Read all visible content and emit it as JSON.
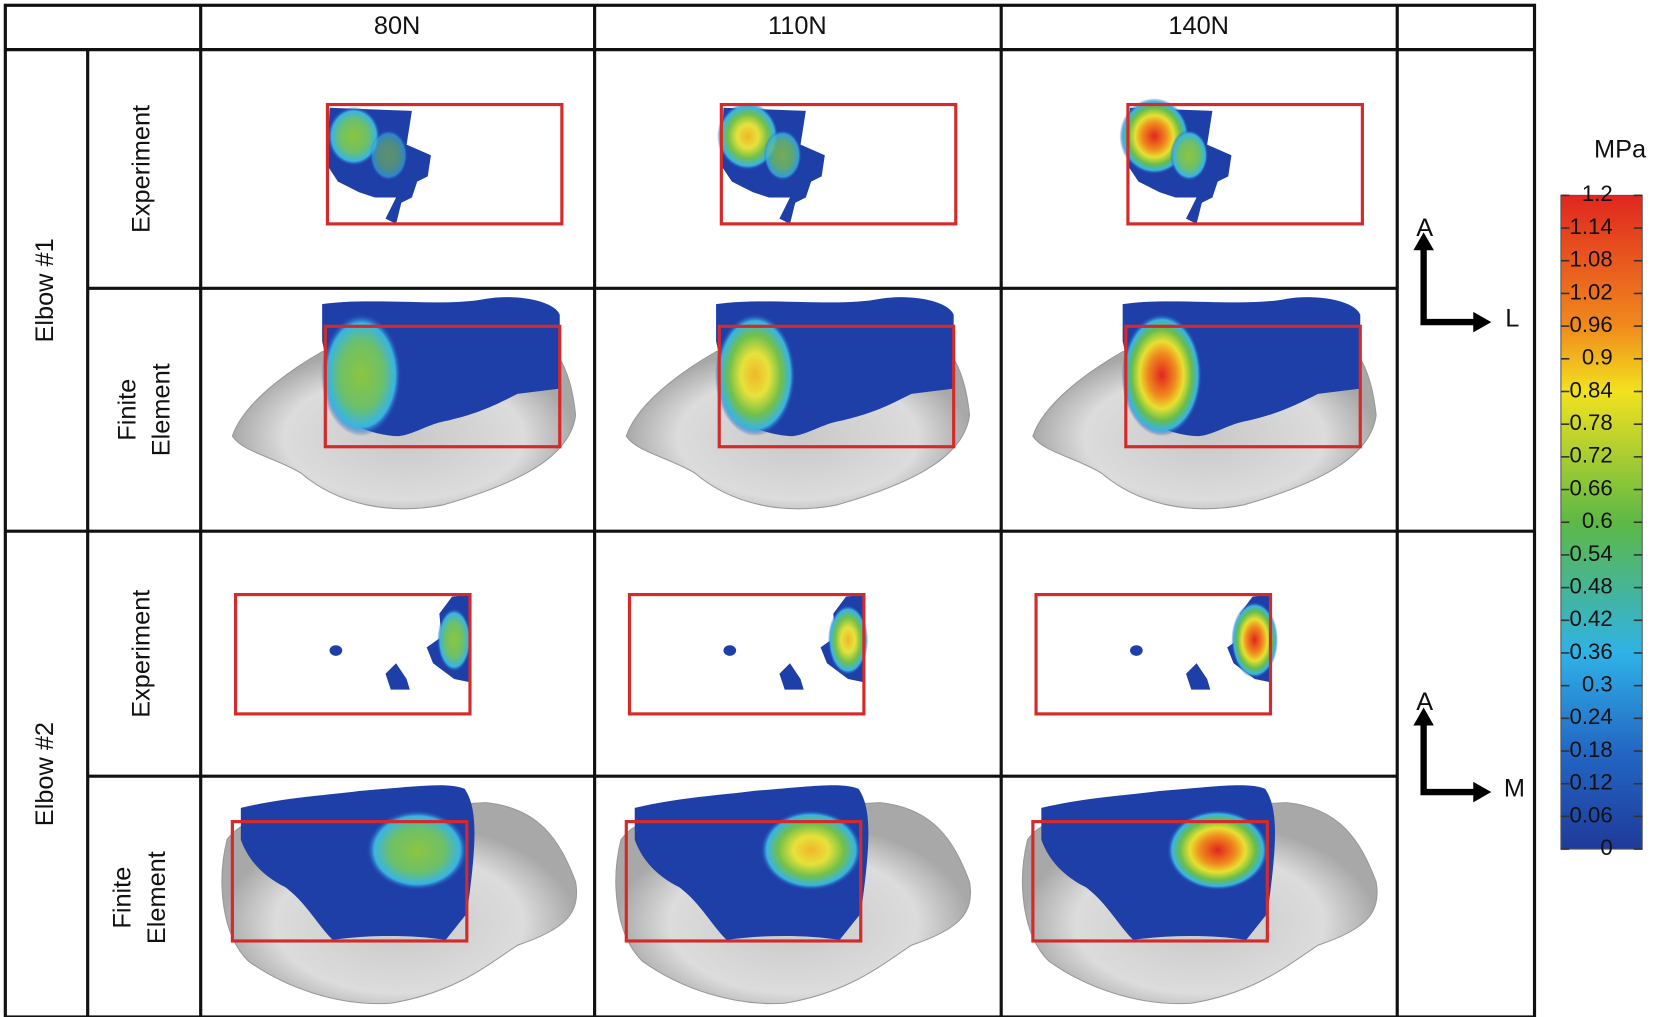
{
  "header": {
    "columns": [
      "80N",
      "110N",
      "140N"
    ]
  },
  "rows": [
    {
      "label": "Elbow #1",
      "experiment": "Experiment",
      "finite_element": [
        "Finite",
        "Element"
      ],
      "axes": [
        "A",
        "L"
      ]
    },
    {
      "label": "Elbow #2",
      "experiment": "Experiment",
      "finite_element": [
        "Finite",
        "Element"
      ],
      "axes": [
        "A",
        "M"
      ]
    }
  ],
  "colorbar": {
    "title": "MPa",
    "ticks": [
      1.2,
      1.14,
      1.08,
      1.02,
      0.96,
      0.9,
      0.84,
      0.78,
      0.72,
      0.66,
      0.6,
      0.54,
      0.48,
      0.42,
      0.36,
      0.3,
      0.24,
      0.18,
      0.12,
      0.06,
      0
    ]
  }
}
